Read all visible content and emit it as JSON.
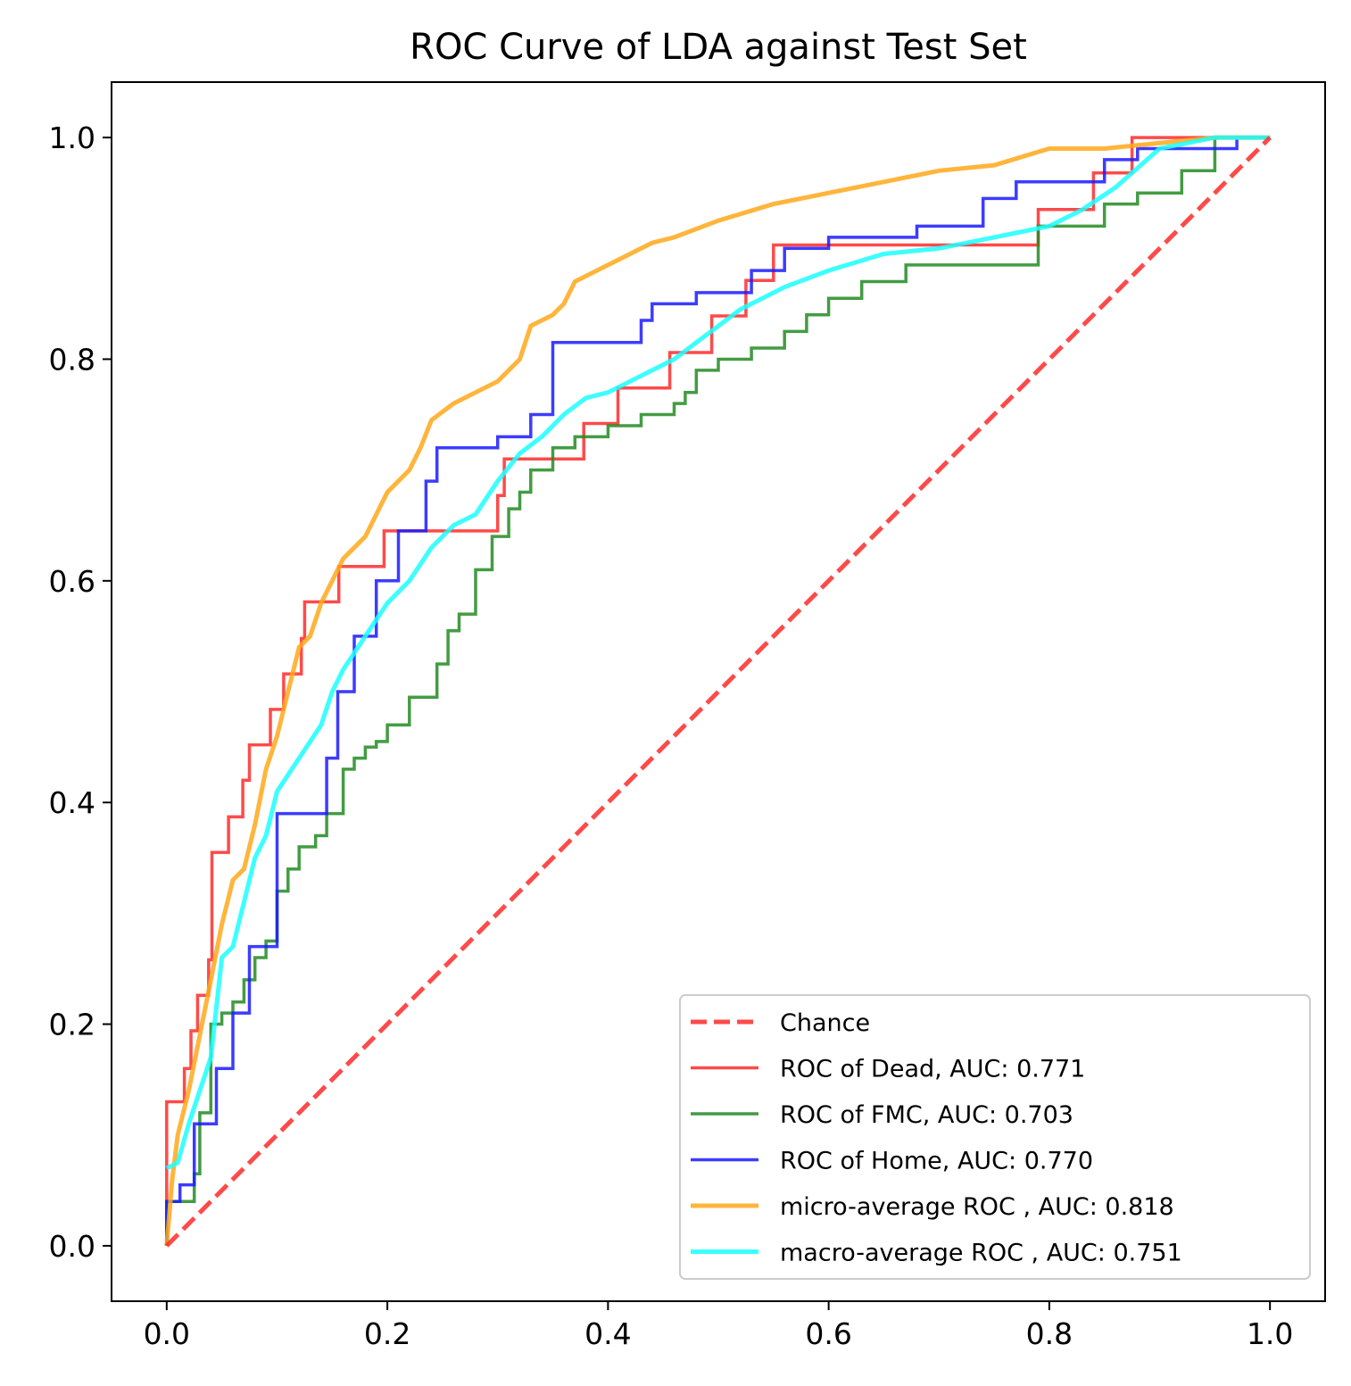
{
  "chart_data": {
    "type": "line",
    "title": "ROC Curve of LDA against Test Set",
    "xlabel": "",
    "ylabel": "",
    "xlim": [
      -0.05,
      1.05
    ],
    "ylim": [
      -0.05,
      1.05
    ],
    "xticks": [
      0.0,
      0.2,
      0.4,
      0.6,
      0.8,
      1.0
    ],
    "yticks": [
      0.0,
      0.2,
      0.4,
      0.6,
      0.8,
      1.0
    ],
    "xtick_labels": [
      "0.0",
      "0.2",
      "0.4",
      "0.6",
      "0.8",
      "1.0"
    ],
    "ytick_labels": [
      "0.0",
      "0.2",
      "0.4",
      "0.6",
      "0.8",
      "1.0"
    ],
    "grid": false,
    "legend_position": "lower-right",
    "series": [
      {
        "name": "Chance",
        "color": "#ff2a2a",
        "style": "dashed",
        "x": [
          0,
          1
        ],
        "y": [
          0,
          1
        ]
      },
      {
        "name": "ROC of Dead, AUC: 0.771",
        "color": "#ff2a2a",
        "style": "step",
        "x": [
          0,
          0,
          0.006,
          0.006,
          0.016,
          0.016,
          0.022,
          0.022,
          0.028,
          0.028,
          0.038,
          0.038,
          0.041,
          0.041,
          0.056,
          0.056,
          0.069,
          0.069,
          0.075,
          0.075,
          0.094,
          0.094,
          0.106,
          0.106,
          0.122,
          0.122,
          0.125,
          0.125,
          0.156,
          0.156,
          0.197,
          0.197,
          0.3,
          0.3,
          0.306,
          0.306,
          0.378,
          0.378,
          0.409,
          0.409,
          0.456,
          0.456,
          0.494,
          0.494,
          0.525,
          0.525,
          0.55,
          0.55,
          0.79,
          0.79,
          0.84,
          0.84,
          0.875,
          0.875,
          1.0
        ],
        "y": [
          0,
          0.13,
          0.13,
          0.13,
          0.13,
          0.16,
          0.16,
          0.194,
          0.194,
          0.226,
          0.226,
          0.258,
          0.258,
          0.355,
          0.355,
          0.387,
          0.387,
          0.42,
          0.42,
          0.452,
          0.452,
          0.484,
          0.484,
          0.516,
          0.516,
          0.548,
          0.548,
          0.581,
          0.581,
          0.613,
          0.613,
          0.645,
          0.645,
          0.677,
          0.677,
          0.71,
          0.71,
          0.742,
          0.742,
          0.774,
          0.774,
          0.806,
          0.806,
          0.839,
          0.839,
          0.871,
          0.871,
          0.903,
          0.903,
          0.935,
          0.935,
          0.968,
          0.968,
          1.0,
          1.0
        ]
      },
      {
        "name": "ROC of FMC, AUC: 0.703",
        "color": "#228b22",
        "style": "step",
        "x": [
          0,
          0,
          0.025,
          0.025,
          0.03,
          0.03,
          0.04,
          0.04,
          0.05,
          0.05,
          0.06,
          0.06,
          0.07,
          0.07,
          0.08,
          0.08,
          0.09,
          0.09,
          0.1,
          0.1,
          0.11,
          0.11,
          0.12,
          0.12,
          0.135,
          0.135,
          0.145,
          0.145,
          0.16,
          0.16,
          0.17,
          0.17,
          0.18,
          0.18,
          0.19,
          0.19,
          0.2,
          0.2,
          0.22,
          0.22,
          0.245,
          0.245,
          0.255,
          0.255,
          0.265,
          0.265,
          0.28,
          0.28,
          0.295,
          0.295,
          0.31,
          0.31,
          0.32,
          0.32,
          0.33,
          0.33,
          0.35,
          0.35,
          0.37,
          0.37,
          0.4,
          0.4,
          0.43,
          0.43,
          0.46,
          0.46,
          0.47,
          0.47,
          0.48,
          0.48,
          0.5,
          0.5,
          0.53,
          0.53,
          0.56,
          0.56,
          0.58,
          0.58,
          0.6,
          0.6,
          0.63,
          0.63,
          0.67,
          0.67,
          0.79,
          0.79,
          0.85,
          0.85,
          0.88,
          0.88,
          0.92,
          0.92,
          0.95,
          0.95,
          1.0
        ],
        "y": [
          0,
          0.04,
          0.04,
          0.065,
          0.065,
          0.12,
          0.12,
          0.2,
          0.2,
          0.21,
          0.21,
          0.22,
          0.22,
          0.24,
          0.24,
          0.26,
          0.26,
          0.275,
          0.275,
          0.32,
          0.32,
          0.34,
          0.34,
          0.36,
          0.36,
          0.37,
          0.37,
          0.39,
          0.39,
          0.43,
          0.43,
          0.44,
          0.44,
          0.45,
          0.45,
          0.455,
          0.455,
          0.47,
          0.47,
          0.495,
          0.495,
          0.525,
          0.525,
          0.555,
          0.555,
          0.57,
          0.57,
          0.61,
          0.61,
          0.64,
          0.64,
          0.665,
          0.665,
          0.68,
          0.68,
          0.7,
          0.7,
          0.72,
          0.72,
          0.73,
          0.73,
          0.74,
          0.74,
          0.75,
          0.75,
          0.76,
          0.76,
          0.77,
          0.77,
          0.79,
          0.79,
          0.8,
          0.8,
          0.81,
          0.81,
          0.825,
          0.825,
          0.84,
          0.84,
          0.855,
          0.855,
          0.87,
          0.87,
          0.885,
          0.885,
          0.92,
          0.92,
          0.94,
          0.94,
          0.95,
          0.95,
          0.97,
          0.97,
          1.0,
          1.0
        ]
      },
      {
        "name": "ROC of Home, AUC: 0.770",
        "color": "#1a1aff",
        "style": "step",
        "x": [
          0,
          0,
          0.012,
          0.012,
          0.025,
          0.025,
          0.045,
          0.045,
          0.06,
          0.06,
          0.075,
          0.075,
          0.1,
          0.1,
          0.145,
          0.145,
          0.155,
          0.155,
          0.17,
          0.17,
          0.19,
          0.19,
          0.21,
          0.21,
          0.235,
          0.235,
          0.245,
          0.245,
          0.3,
          0.3,
          0.33,
          0.33,
          0.35,
          0.35,
          0.43,
          0.43,
          0.44,
          0.44,
          0.48,
          0.48,
          0.53,
          0.53,
          0.56,
          0.56,
          0.6,
          0.6,
          0.68,
          0.68,
          0.74,
          0.74,
          0.77,
          0.77,
          0.85,
          0.85,
          0.88,
          0.88,
          0.97,
          0.97,
          1.0
        ],
        "y": [
          0,
          0.04,
          0.04,
          0.055,
          0.055,
          0.11,
          0.11,
          0.16,
          0.16,
          0.21,
          0.21,
          0.27,
          0.27,
          0.39,
          0.39,
          0.44,
          0.44,
          0.5,
          0.5,
          0.55,
          0.55,
          0.6,
          0.6,
          0.645,
          0.645,
          0.69,
          0.69,
          0.72,
          0.72,
          0.73,
          0.73,
          0.75,
          0.75,
          0.815,
          0.815,
          0.835,
          0.835,
          0.85,
          0.85,
          0.86,
          0.86,
          0.88,
          0.88,
          0.9,
          0.9,
          0.91,
          0.91,
          0.92,
          0.92,
          0.945,
          0.945,
          0.96,
          0.96,
          0.98,
          0.98,
          0.99,
          0.99,
          1.0,
          1.0
        ]
      },
      {
        "name": "micro-average ROC , AUC: 0.818",
        "color": "#ffa81a",
        "style": "line",
        "x": [
          0,
          0.005,
          0.01,
          0.02,
          0.03,
          0.04,
          0.05,
          0.06,
          0.07,
          0.08,
          0.09,
          0.1,
          0.11,
          0.12,
          0.13,
          0.14,
          0.15,
          0.16,
          0.18,
          0.19,
          0.2,
          0.22,
          0.23,
          0.24,
          0.26,
          0.28,
          0.3,
          0.32,
          0.33,
          0.35,
          0.36,
          0.37,
          0.38,
          0.4,
          0.42,
          0.44,
          0.46,
          0.5,
          0.55,
          0.6,
          0.65,
          0.7,
          0.75,
          0.8,
          0.85,
          0.9,
          0.95,
          1.0
        ],
        "y": [
          0,
          0.06,
          0.1,
          0.14,
          0.19,
          0.24,
          0.29,
          0.33,
          0.34,
          0.38,
          0.43,
          0.46,
          0.5,
          0.54,
          0.55,
          0.58,
          0.6,
          0.62,
          0.64,
          0.66,
          0.68,
          0.7,
          0.72,
          0.745,
          0.76,
          0.77,
          0.78,
          0.8,
          0.83,
          0.84,
          0.85,
          0.87,
          0.875,
          0.885,
          0.895,
          0.905,
          0.91,
          0.925,
          0.94,
          0.95,
          0.96,
          0.97,
          0.975,
          0.99,
          0.99,
          0.995,
          1.0,
          1.0
        ]
      },
      {
        "name": "macro-average ROC , AUC: 0.751",
        "color": "#1affff",
        "style": "line",
        "x": [
          0,
          0.01,
          0.02,
          0.03,
          0.04,
          0.05,
          0.06,
          0.07,
          0.08,
          0.09,
          0.1,
          0.12,
          0.14,
          0.15,
          0.16,
          0.18,
          0.2,
          0.22,
          0.24,
          0.26,
          0.28,
          0.3,
          0.32,
          0.34,
          0.36,
          0.38,
          0.4,
          0.42,
          0.44,
          0.46,
          0.48,
          0.5,
          0.52,
          0.54,
          0.56,
          0.6,
          0.65,
          0.7,
          0.75,
          0.8,
          0.83,
          0.86,
          0.9,
          0.95,
          1.0
        ],
        "y": [
          0.07,
          0.075,
          0.11,
          0.14,
          0.17,
          0.26,
          0.27,
          0.31,
          0.35,
          0.37,
          0.41,
          0.44,
          0.47,
          0.5,
          0.52,
          0.55,
          0.58,
          0.6,
          0.63,
          0.65,
          0.66,
          0.69,
          0.715,
          0.73,
          0.75,
          0.765,
          0.77,
          0.78,
          0.79,
          0.8,
          0.815,
          0.83,
          0.845,
          0.855,
          0.865,
          0.88,
          0.895,
          0.9,
          0.91,
          0.92,
          0.935,
          0.955,
          0.99,
          1.0,
          1.0
        ]
      }
    ]
  }
}
